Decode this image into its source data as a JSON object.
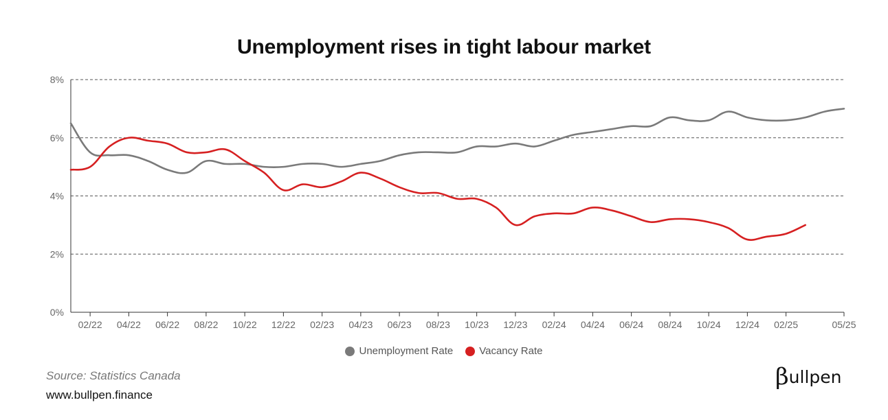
{
  "chart_data": {
    "type": "line",
    "title": "Unemployment rises in tight labour market",
    "xlabel": "",
    "ylabel": "",
    "ylim": [
      0,
      8
    ],
    "y_ticks": [
      "0%",
      "2%",
      "4%",
      "6%",
      "8%"
    ],
    "y_tick_values": [
      0,
      2,
      4,
      6,
      8
    ],
    "x_ticks": [
      "02/22",
      "04/22",
      "06/22",
      "08/22",
      "10/22",
      "12/22",
      "02/23",
      "04/23",
      "06/23",
      "08/23",
      "10/23",
      "12/23",
      "02/24",
      "04/24",
      "06/24",
      "08/24",
      "10/24",
      "12/24",
      "02/25",
      "05/25"
    ],
    "x_tick_month_index": [
      1,
      3,
      5,
      7,
      9,
      11,
      13,
      15,
      17,
      19,
      21,
      23,
      25,
      27,
      29,
      31,
      33,
      35,
      37,
      40
    ],
    "x_range": [
      "01/22",
      "05/25"
    ],
    "grid": "horizontal dashed",
    "legend_position": "bottom",
    "series": [
      {
        "name": "Unemployment Rate",
        "color": "#7a7a7a",
        "x": [
          "01/22",
          "02/22",
          "03/22",
          "04/22",
          "05/22",
          "06/22",
          "07/22",
          "08/22",
          "09/22",
          "10/22",
          "11/22",
          "12/22",
          "01/23",
          "02/23",
          "03/23",
          "04/23",
          "05/23",
          "06/23",
          "07/23",
          "08/23",
          "09/23",
          "10/23",
          "11/23",
          "12/23",
          "01/24",
          "02/24",
          "03/24",
          "04/24",
          "05/24",
          "06/24",
          "07/24",
          "08/24",
          "09/24",
          "10/24",
          "11/24",
          "12/24",
          "01/25",
          "02/25",
          "03/25",
          "04/25",
          "05/25"
        ],
        "values": [
          6.5,
          5.5,
          5.4,
          5.4,
          5.2,
          4.9,
          4.8,
          5.2,
          5.1,
          5.1,
          5.0,
          5.0,
          5.1,
          5.1,
          5.0,
          5.1,
          5.2,
          5.4,
          5.5,
          5.5,
          5.5,
          5.7,
          5.7,
          5.8,
          5.7,
          5.9,
          6.1,
          6.2,
          6.3,
          6.4,
          6.4,
          6.7,
          6.6,
          6.6,
          6.9,
          6.7,
          6.6,
          6.6,
          6.7,
          6.9,
          7.0
        ]
      },
      {
        "name": "Vacancy Rate",
        "color": "#d62021",
        "x": [
          "01/22",
          "02/22",
          "03/22",
          "04/22",
          "05/22",
          "06/22",
          "07/22",
          "08/22",
          "09/22",
          "10/22",
          "11/22",
          "12/22",
          "01/23",
          "02/23",
          "03/23",
          "04/23",
          "05/23",
          "06/23",
          "07/23",
          "08/23",
          "09/23",
          "10/23",
          "11/23",
          "12/23",
          "01/24",
          "02/24",
          "03/24",
          "04/24",
          "05/24",
          "06/24",
          "07/24",
          "08/24",
          "09/24",
          "10/24",
          "11/24",
          "12/24",
          "01/25",
          "02/25",
          "03/25"
        ],
        "values": [
          4.9,
          5.0,
          5.7,
          6.0,
          5.9,
          5.8,
          5.5,
          5.5,
          5.6,
          5.2,
          4.8,
          4.2,
          4.4,
          4.3,
          4.5,
          4.8,
          4.6,
          4.3,
          4.1,
          4.1,
          3.9,
          3.9,
          3.6,
          3.0,
          3.3,
          3.4,
          3.4,
          3.6,
          3.5,
          3.3,
          3.1,
          3.2,
          3.2,
          3.1,
          2.9,
          2.5,
          2.6,
          2.7,
          3.0
        ]
      }
    ]
  },
  "legend": {
    "items": [
      {
        "label": "Unemployment Rate",
        "color": "#7a7a7a"
      },
      {
        "label": "Vacancy Rate",
        "color": "#d62021"
      }
    ]
  },
  "footer": {
    "source": "Source: Statistics Canada",
    "website": "www.bullpen.finance",
    "logo_beta": "β",
    "logo_text": "ullpen"
  }
}
